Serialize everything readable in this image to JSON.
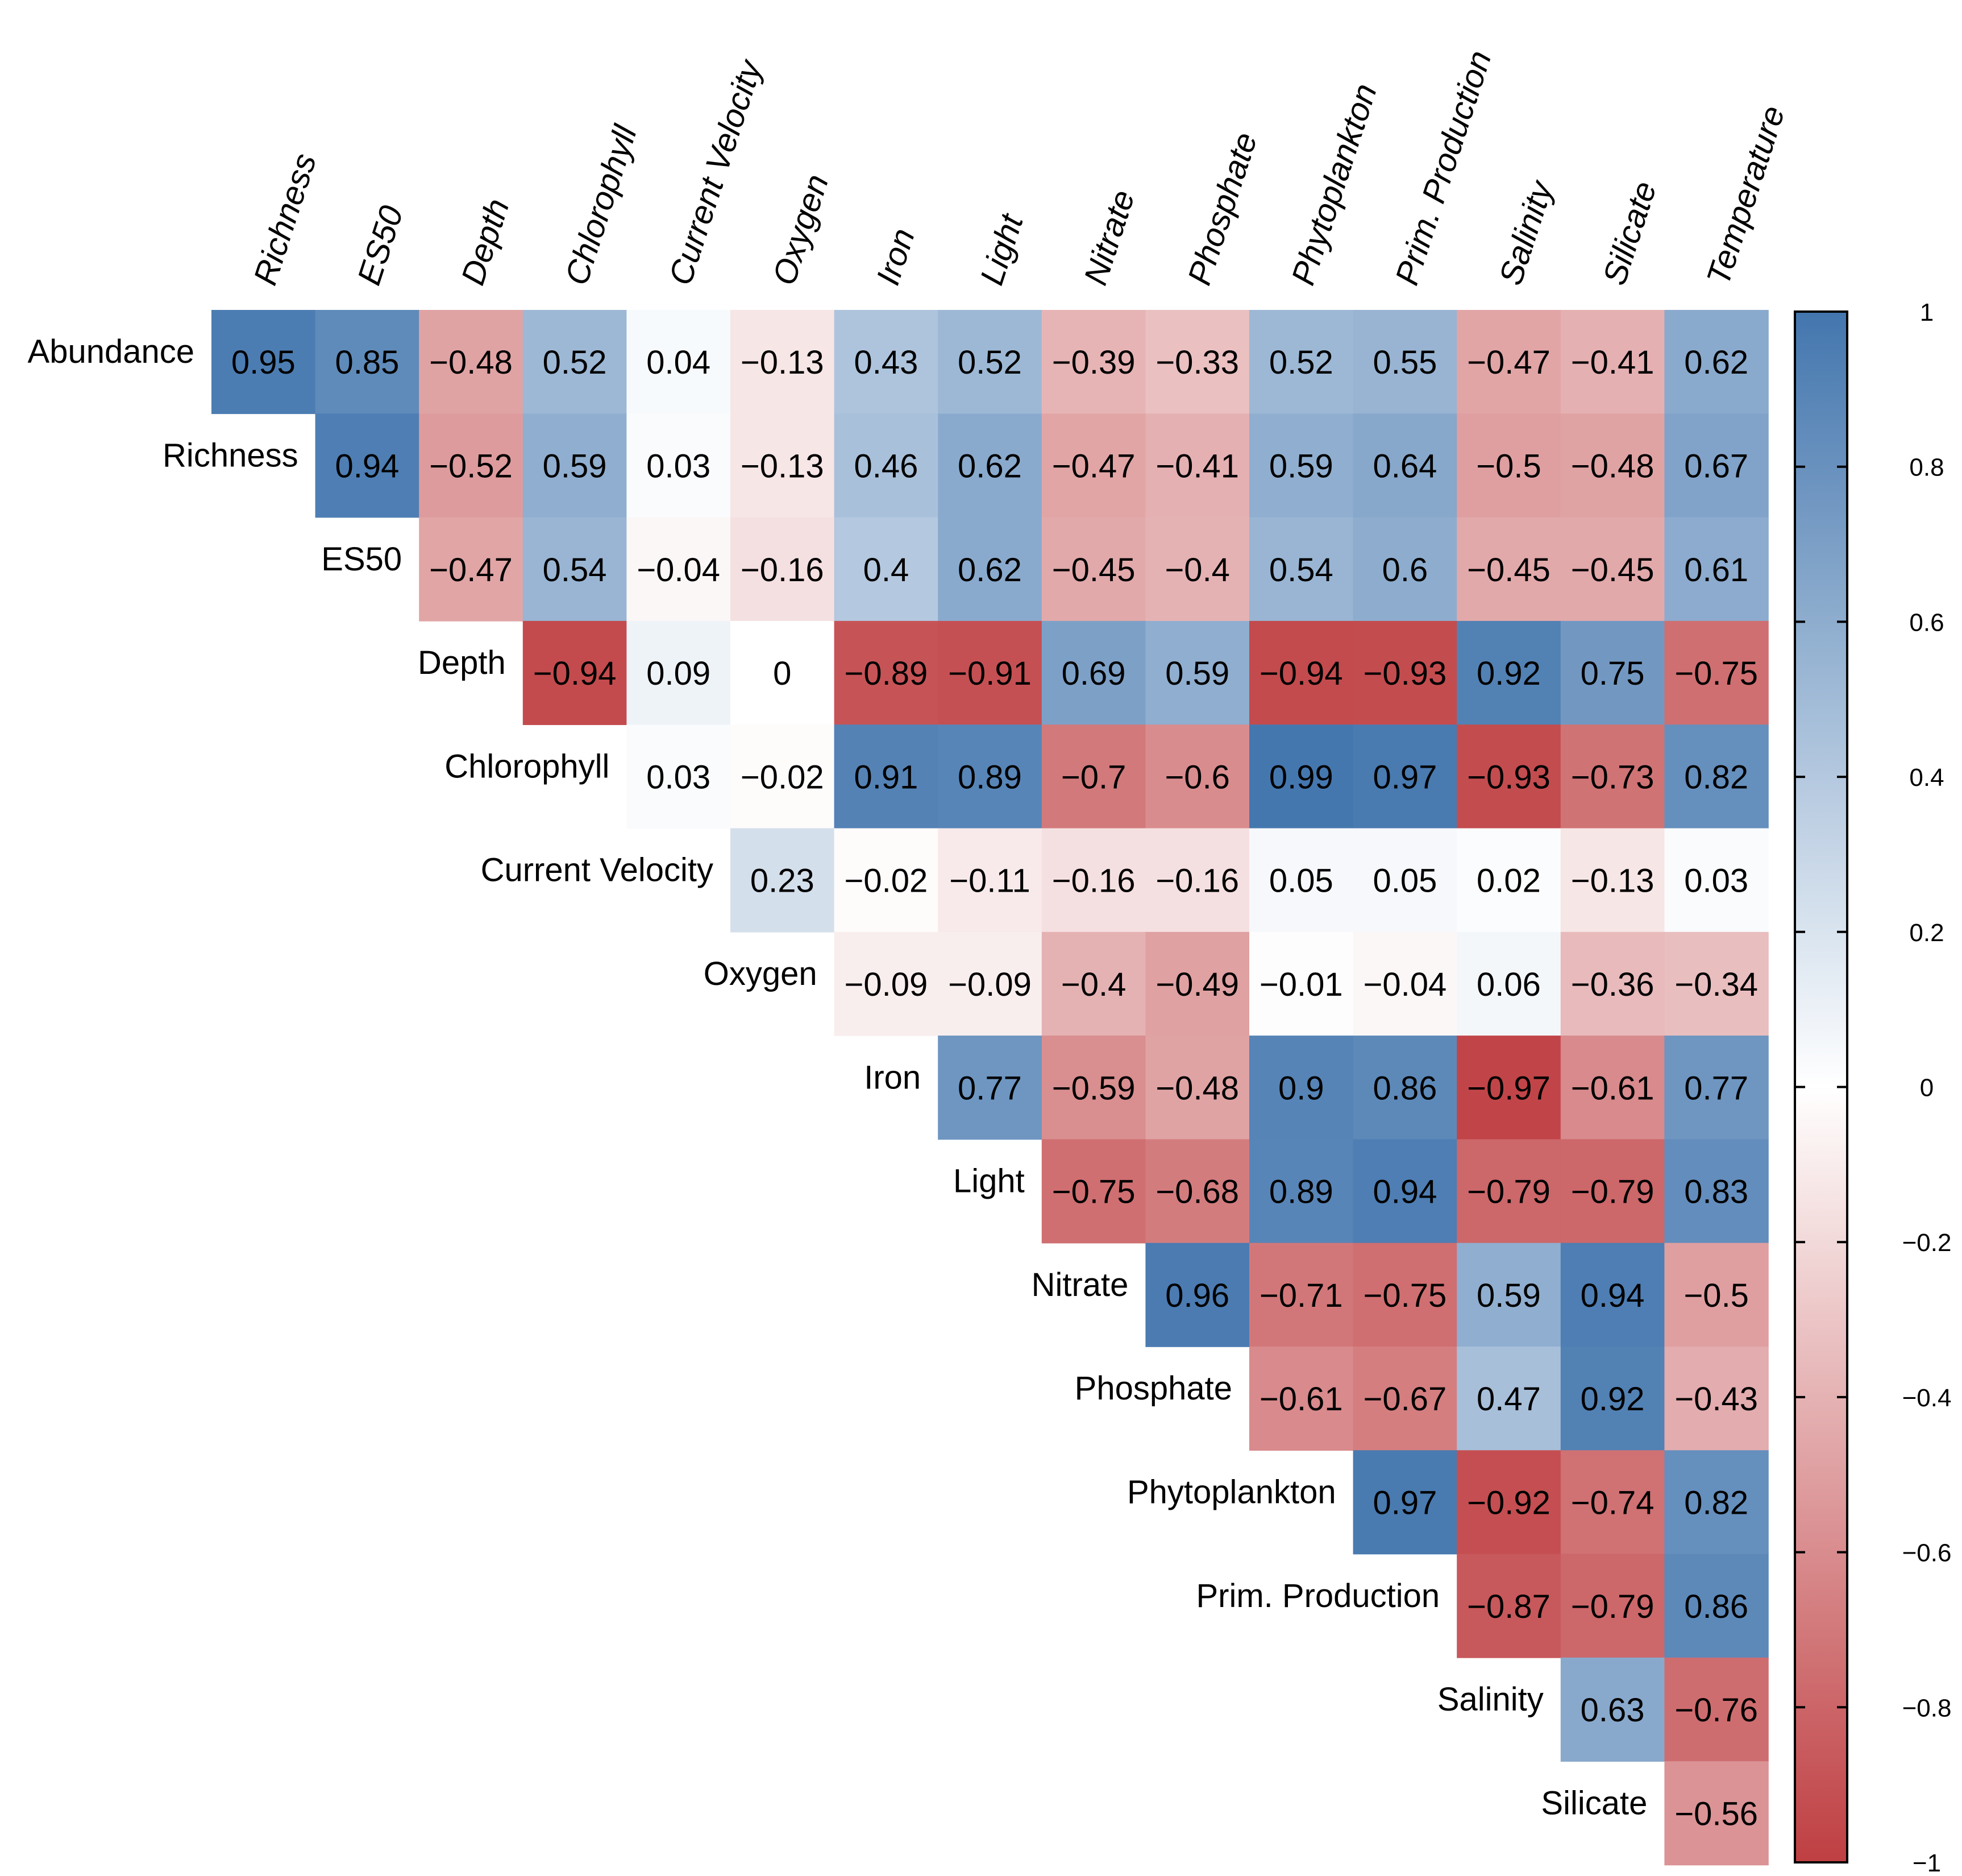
{
  "chart_data": {
    "type": "heatmap",
    "title": "",
    "row_labels": [
      "Abundance",
      "Richness",
      "ES50",
      "Depth",
      "Chlorophyll",
      "Current Velocity",
      "Oxygen",
      "Iron",
      "Light",
      "Nitrate",
      "Phosphate",
      "Phytoplankton",
      "Prim. Production",
      "Salinity",
      "Silicate"
    ],
    "col_labels": [
      "Richness",
      "ES50",
      "Depth",
      "Chlorophyll",
      "Current Velocity",
      "Oxygen",
      "Iron",
      "Light",
      "Nitrate",
      "Phosphate",
      "Phytoplankton",
      "Prim. Production",
      "Salinity",
      "Silicate",
      "Temperature"
    ],
    "values": [
      [
        0.95,
        0.85,
        -0.48,
        0.52,
        0.04,
        -0.13,
        0.43,
        0.52,
        -0.39,
        -0.33,
        0.52,
        0.55,
        -0.47,
        -0.41,
        0.62
      ],
      [
        null,
        0.94,
        -0.52,
        0.59,
        0.03,
        -0.13,
        0.46,
        0.62,
        -0.47,
        -0.41,
        0.59,
        0.64,
        -0.5,
        -0.48,
        0.67
      ],
      [
        null,
        null,
        -0.47,
        0.54,
        -0.04,
        -0.16,
        0.4,
        0.62,
        -0.45,
        -0.4,
        0.54,
        0.6,
        -0.45,
        -0.45,
        0.61
      ],
      [
        null,
        null,
        null,
        -0.94,
        0.09,
        0,
        -0.89,
        -0.91,
        0.69,
        0.59,
        -0.94,
        -0.93,
        0.92,
        0.75,
        -0.75
      ],
      [
        null,
        null,
        null,
        null,
        0.03,
        -0.02,
        0.91,
        0.89,
        -0.7,
        -0.6,
        0.99,
        0.97,
        -0.93,
        -0.73,
        0.82
      ],
      [
        null,
        null,
        null,
        null,
        null,
        0.23,
        -0.02,
        -0.11,
        -0.16,
        -0.16,
        0.05,
        0.05,
        0.02,
        -0.13,
        0.03
      ],
      [
        null,
        null,
        null,
        null,
        null,
        null,
        -0.09,
        -0.09,
        -0.4,
        -0.49,
        -0.01,
        -0.04,
        0.06,
        -0.36,
        -0.34
      ],
      [
        null,
        null,
        null,
        null,
        null,
        null,
        null,
        0.77,
        -0.59,
        -0.48,
        0.9,
        0.86,
        -0.97,
        -0.61,
        0.77
      ],
      [
        null,
        null,
        null,
        null,
        null,
        null,
        null,
        null,
        -0.75,
        -0.68,
        0.89,
        0.94,
        -0.79,
        -0.79,
        0.83
      ],
      [
        null,
        null,
        null,
        null,
        null,
        null,
        null,
        null,
        null,
        0.96,
        -0.71,
        -0.75,
        0.59,
        0.94,
        -0.5
      ],
      [
        null,
        null,
        null,
        null,
        null,
        null,
        null,
        null,
        null,
        null,
        -0.61,
        -0.67,
        0.47,
        0.92,
        -0.43
      ],
      [
        null,
        null,
        null,
        null,
        null,
        null,
        null,
        null,
        null,
        null,
        null,
        0.97,
        -0.92,
        -0.74,
        0.82
      ],
      [
        null,
        null,
        null,
        null,
        null,
        null,
        null,
        null,
        null,
        null,
        null,
        null,
        -0.87,
        -0.79,
        0.86
      ],
      [
        null,
        null,
        null,
        null,
        null,
        null,
        null,
        null,
        null,
        null,
        null,
        null,
        null,
        0.63,
        -0.76
      ],
      [
        null,
        null,
        null,
        null,
        null,
        null,
        null,
        null,
        null,
        null,
        null,
        null,
        null,
        null,
        -0.56
      ]
    ],
    "colorbar": {
      "min": -1,
      "max": 1,
      "ticks": [
        1,
        0.8,
        0.6,
        0.4,
        0.2,
        0,
        -0.2,
        -0.4,
        -0.6,
        -0.8,
        -1
      ],
      "tick_labels": [
        "1",
        "0.8",
        "0.6",
        "0.4",
        "0.2",
        "0",
        "−0.2",
        "−0.4",
        "−0.6",
        "−0.8",
        "−1"
      ]
    },
    "colors": {
      "negative": "#bf3f42",
      "neutral": "#ffffff",
      "positive": "#4376ae"
    }
  }
}
